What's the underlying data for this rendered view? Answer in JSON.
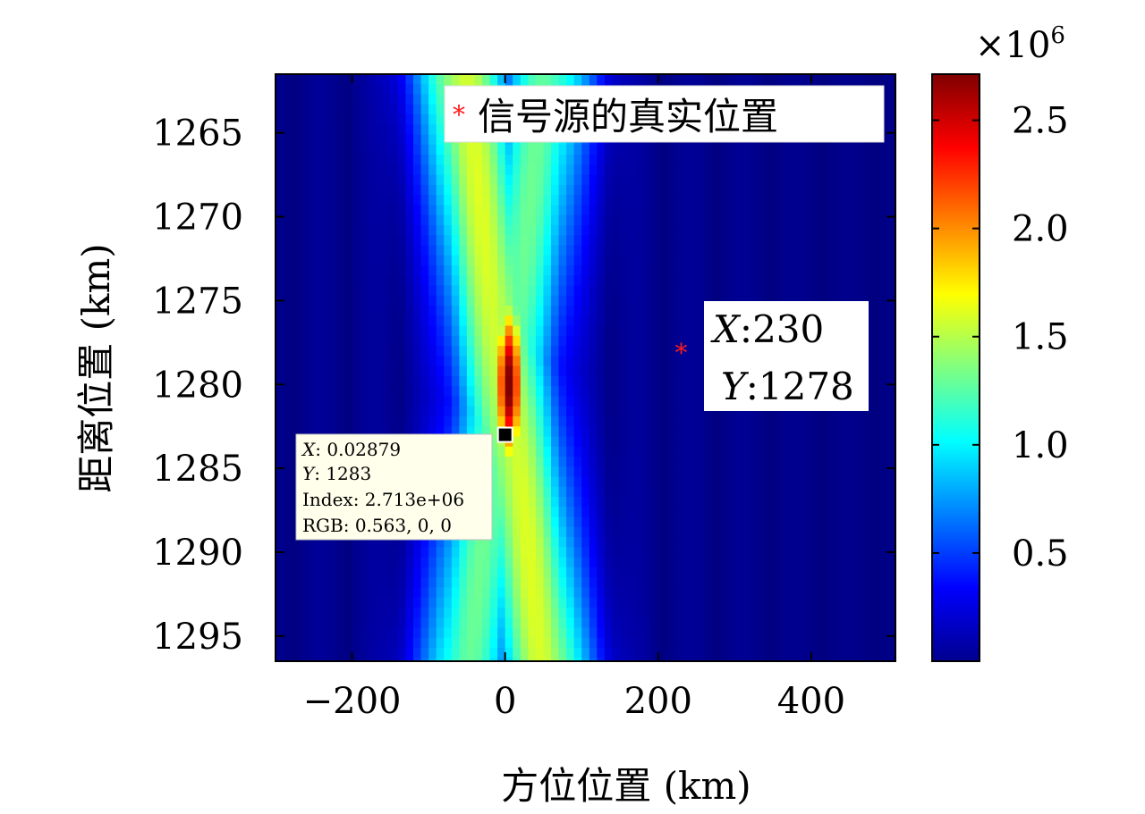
{
  "chart_data": {
    "type": "heatmap",
    "xlabel": "方位位置 (km)",
    "ylabel": "距离位置 (km)",
    "xlim": [
      -300,
      510
    ],
    "ylim": [
      1296.5,
      1261.5
    ],
    "x_ticks": [
      -200,
      0,
      200,
      400
    ],
    "y_ticks": [
      1265,
      1270,
      1275,
      1280,
      1285,
      1290,
      1295
    ],
    "colormap": "jet",
    "colorbar": {
      "range": [
        0,
        2.713
      ],
      "ticks": [
        0.5,
        1.0,
        1.5,
        2.0,
        2.5
      ],
      "tick_labels": [
        "0.5",
        "1.0",
        "1.5",
        "2.0",
        "2.5"
      ],
      "multiplier_base": "×10",
      "multiplier_exp": "6"
    },
    "legend": {
      "label": "信号源的真实位置",
      "placement": "top-right"
    },
    "true_source": {
      "x": 230,
      "y": 1278,
      "label_x": "230",
      "label_y": "1278"
    },
    "peak": {
      "x": 0.02879,
      "y": 1283,
      "value": 2.713
    },
    "datatip": {
      "x": "0.02879",
      "y": "1283",
      "index": "2.713e+06",
      "rgb": "0.563, 0, 0"
    },
    "grid": false
  },
  "colors": {
    "marker": "#ff1a1a",
    "background": "#00008f",
    "datatip_bg": "#ffffec"
  }
}
